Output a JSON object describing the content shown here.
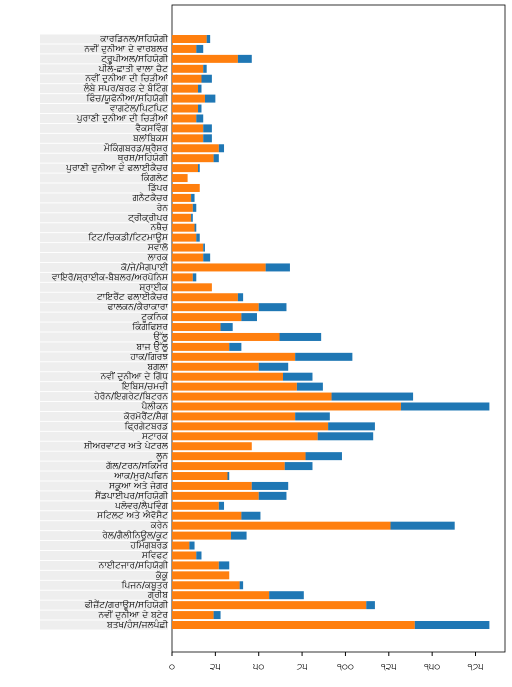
{
  "chart_data": {
    "type": "stacked-barh",
    "categories": [
      "ਕਾਰਡਿਨਲ/ਸਹਿਯੋਗੀ",
      "ਨਵੀਂ ਦੁਨੀਆ ਦੇ ਵਾਰਬਲਰ",
      "ਟ੍ਰੂਪੀਅਲ/ਸਹਿਯੋਗੀ",
      "ਪੀਲੇ-ਛਾਤੀ ਵਾਲਾ ਚੈਟ",
      "ਨਵੀਂ ਦੁਨੀਆ ਦੀ ਚਿੜੀਆਂ",
      "ਲੰਬੇ ਸਪਰ/ਬਰਫ਼ ਦੇ ਬੰਟਿੰਗ",
      "ਫਿੰਚ/ਯੂਫੋਨੀਆ/ਸਹਿਯੋਗੀ",
      "ਵਾਗਟੇਲ/ਪਿਟਪਿਟ",
      "ਪੁਰਾਣੀ ਦੁਨੀਆ ਦੀ ਚਿੜੀਆਂ",
      "ਵੈਕਸਵਿੰਗ",
      "ਬਲਾਂਬਿਕਸ",
      "ਮੌਕਿੰਗਬਰਡ/ਥ੍ਰੈਸ਼ਰ",
      "ਥ੍ਰਸ਼/ਸਹਿਯੋਗੀ",
      "ਪੁਰਾਣੀ ਦੁਨੀਆ ਦੇ ਫਲਾਈਕੈਚਰ",
      "ਕਿੰਗਲੇਟ",
      "ਡਿੱਪਰ",
      "ਗਨੈਟਕੈਚਰ",
      "ਰੇਨ",
      "ਟ੍ਰੀਕ੍ਰੀਪਰ",
      "ਨਥੈਚ",
      "ਟਿਟ/ਚਿਕਡੀ/ਟਿਟਮਾਊਸ",
      "ਸਵਾਲੋ",
      "ਲਾਰਕ",
      "ਕੋ/ਜੇ/ਮੈਗਪਾਈ",
      "ਵਾਇਰੋ/ਸ਼੍ਰਾਈਕ-ਬੈਬਲਰ/ਅਰਪੋਨਿਸ",
      "ਸ਼੍ਰਾਈਕ",
      "ਟਾਇਰੈਂਟ ਫਲਾਈਕੈਚਰ",
      "ਫਾਲਕਨ/ਕੈਰਾਕਾਰਾ",
      "ਟੂਕਨਿਕ",
      "ਕਿੰਗਫਿਸ਼ਰ",
      "ਉੱਲੂ",
      "ਬਾਜ ਉੱਲੂ",
      "ਹਾਕ/ਗਿਰਝ",
      "ਬਗਲਾ",
      "ਨਵੀਂ ਦੁਨੀਆ ਦੇ ਗਿੱਧ",
      "ਇਬਿਸ/ਚਮਚੀ",
      "ਹੇਰੋਨ/ਇਗਰੇਟ/ਬਿਟਰਨ",
      "ਪੈਲੀਕਨ",
      "ਕੋਰਮੋਰੈਂਟ/ਸ਼ੈਗ",
      "ਫ੍ਰਿਗੇਟਬਰਡ",
      "ਸਟਾਰਕ",
      "ਸ਼ੀਅਰਵਾਟਰ ਅਤੇ ਪੇਟਰਲ",
      "ਲੂਨ",
      "ਗੱਲ/ਟਰਨ/ਸਕਿਮਰ",
      "ਆਕ/ਮੁਰ/ਪਫਿਨ",
      "ਸਕੂਆ ਅਤੇ ਜੇਗਰ",
      "ਸੈਂਡਪਾਈਪਰ/ਸਹਿਯੋਗੀ",
      "ਪਲੋਵਰ/ਲੈਪਵਿੰਗ",
      "ਸਟਿਲਟ ਅਤੇ ਐਵੋਸੈਟ",
      "ਕਰੇਨ",
      "ਰੇਲ/ਗੈਲੀਨਿਊਲ/ਕੂਟ",
      "ਹਮਿੰਗਬਰਡ",
      "ਸਵਿਫਟ",
      "ਨਾਈਟਜਾਰ/ਸਹਿਯੋਗੀ",
      "ਕੁੱਕੂ",
      "ਪਿਜਨ/ਕਬੂਤਰ",
      "ਗ੍ਰੀਬ",
      "ਫੀਜ਼ੈਂਟ/ਗਰਾਊਸ/ਸਹਿਯੋਗੀ",
      "ਨਵੀਂ ਦੁਨੀਆ ਦੇ ਬਟੇਰ",
      "ਬਤਖ/ਹੰਸ/ਜਲਪੰਛੀ"
    ],
    "series": [
      {
        "color": "#ff7f0e",
        "values": [
          20,
          14,
          38,
          18,
          17,
          15,
          19,
          15,
          14,
          18,
          18,
          27,
          24,
          15,
          9,
          16,
          11,
          12,
          11,
          13,
          14,
          18,
          18,
          54,
          12,
          23,
          38,
          50,
          40,
          28,
          62,
          33,
          71,
          50,
          64,
          72,
          92,
          132,
          71,
          90,
          84,
          46,
          77,
          65,
          32,
          46,
          50,
          27,
          40,
          126,
          34,
          10,
          14,
          27,
          33,
          39,
          56,
          112,
          24,
          140
        ]
      },
      {
        "color": "#1f77b4",
        "values": [
          2,
          4,
          8,
          2,
          6,
          2,
          6,
          2,
          4,
          5,
          5,
          3,
          3,
          1,
          0,
          0,
          2,
          2,
          1,
          1,
          2,
          1,
          4,
          14,
          2,
          0,
          3,
          16,
          9,
          7,
          24,
          7,
          33,
          17,
          17,
          15,
          47,
          51,
          20,
          27,
          32,
          0,
          21,
          16,
          1,
          21,
          16,
          3,
          11,
          37,
          9,
          3,
          3,
          6,
          0,
          2,
          20,
          5,
          4,
          43
        ]
      }
    ],
    "xlim": [
      0,
      192
    ],
    "xticks": [
      {
        "value": 0,
        "label": "੦"
      },
      {
        "value": 25,
        "label": "੨੫"
      },
      {
        "value": 50,
        "label": "੫੦"
      },
      {
        "value": 75,
        "label": "੭੫"
      },
      {
        "value": 100,
        "label": "੧੦੦"
      },
      {
        "value": 125,
        "label": "੧੨੫"
      },
      {
        "value": 150,
        "label": "੧੫੦"
      },
      {
        "value": 175,
        "label": "੧੭੫"
      }
    ]
  }
}
